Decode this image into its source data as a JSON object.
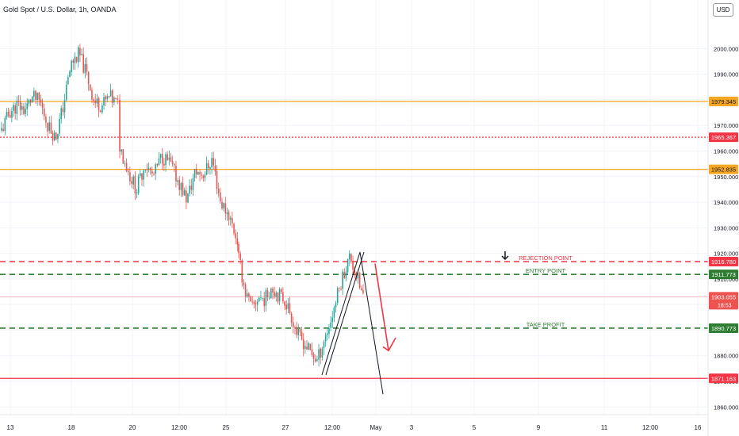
{
  "symbol_title": "Gold Spot / U.S. Dollar, 1h, OANDA",
  "currency_label": "USD",
  "colors": {
    "up": "#26a69a",
    "down": "#ef5350",
    "level_orange": "#f5a623",
    "level_red": "#f23645",
    "entry_green": "#2e7d32",
    "axis_text": "#131722",
    "grid": "#f0f3fa"
  },
  "chart_data": {
    "type": "candlestick",
    "y_axis": {
      "range": [
        1857,
        2019
      ],
      "ticks": [
        1860,
        1870,
        1880,
        1890,
        1900,
        1910,
        1920,
        1930,
        1940,
        1950,
        1960,
        1970,
        1980,
        1990,
        2000
      ],
      "tick_labels": [
        "1860.000",
        "1870.000",
        "1880.000",
        "1890.000",
        "1900.000",
        "1910.000",
        "1920.000",
        "1930.000",
        "1940.000",
        "1950.000",
        "1960.000",
        "1970.000",
        "1980.000",
        "1990.000",
        "2000.000"
      ]
    },
    "x_axis": {
      "tick_labels": [
        "13",
        "18",
        "20",
        "12:00",
        "25",
        "27",
        "12:00",
        "May",
        "3",
        "5",
        "9",
        "11",
        "12:00",
        "16"
      ]
    },
    "grid": true,
    "horizontal_levels": [
      {
        "price": 1979.345,
        "label": "1979.345",
        "style": "solid",
        "color": "#f5a623"
      },
      {
        "price": 1965.367,
        "label": "1965.367",
        "style": "dotted",
        "color": "#f23645"
      },
      {
        "price": 1952.835,
        "label": "1952.835",
        "style": "solid",
        "color": "#f5a623"
      },
      {
        "price": 1916.78,
        "label": "1916.780",
        "style": "dashed",
        "color": "#f23645"
      },
      {
        "price": 1911.773,
        "label": "1911.773",
        "style": "dashed",
        "color": "#2e7d32"
      },
      {
        "price": 1890.773,
        "label": "1890.773",
        "style": "dashed",
        "color": "#2e7d32"
      },
      {
        "price": 1871.163,
        "label": "1871.163",
        "style": "solid",
        "color": "#f23645"
      }
    ],
    "last_price": {
      "price": 1903.055,
      "label": "1903.055",
      "countdown": "18:53"
    },
    "annotations": [
      {
        "text": "REJECTION POINT",
        "price": 1916.78
      },
      {
        "text": "ENTRY POINT",
        "price": 1911.773
      },
      {
        "text": "TAKE PROFIT",
        "price": 1890.773
      }
    ],
    "price_path": [
      [
        1968,
        1975,
        1978,
        1976,
        1981,
        1979,
        1970,
        1965,
        1978,
        1994,
        1998,
        1990,
        1979,
        1978,
        1981,
        1978
      ],
      [
        1962,
        1952,
        1945,
        1955,
        1950,
        1958,
        1955,
        1948,
        1941,
        1952,
        1951,
        1957,
        1940,
        1935,
        1925
      ],
      [
        1918,
        1905,
        1898,
        1903,
        1902,
        1907,
        1904,
        1902,
        1896,
        1888,
        1885,
        1881,
        1878,
        1886,
        1893,
        1903,
        1912,
        1919,
        1911,
        1903
      ]
    ]
  }
}
